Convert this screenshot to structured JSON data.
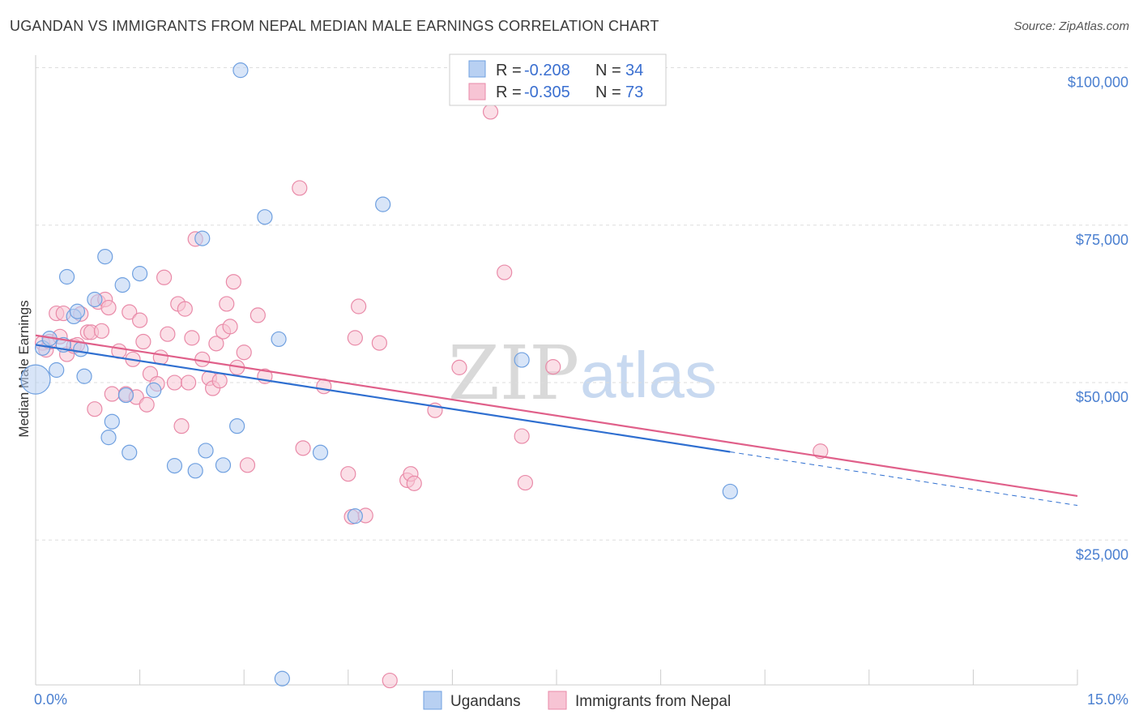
{
  "title": "UGANDAN VS IMMIGRANTS FROM NEPAL MEDIAN MALE EARNINGS CORRELATION CHART",
  "source": "Source: ZipAtlas.com",
  "watermark": {
    "zip": "ZIP",
    "atlas": "atlas"
  },
  "colors": {
    "ugandans": "#6fa0e0",
    "ugandans_fill": "#b8d0f2",
    "nepal": "#e98aa8",
    "nepal_fill": "#f7c4d4",
    "ugandans_line": "#2f6fd0",
    "nepal_line": "#e0608a",
    "axis_label": "#4a7fd0",
    "grid": "#dddddd"
  },
  "legend_stats": [
    {
      "r_label": "R = ",
      "r_value": "-0.208",
      "n_label": "N = ",
      "n_value": "34"
    },
    {
      "r_label": "R = ",
      "r_value": "-0.305",
      "n_label": "N = ",
      "n_value": "73"
    }
  ],
  "chart_data": {
    "type": "scatter",
    "title": "UGANDAN VS IMMIGRANTS FROM NEPAL MEDIAN MALE EARNINGS CORRELATION CHART",
    "xlabel": "",
    "ylabel": "Median Male Earnings",
    "xlim": [
      0,
      15
    ],
    "ylim": [
      2000,
      102000
    ],
    "x_tick_labels": [
      "0.0%",
      "15.0%"
    ],
    "y_ticks": [
      25000,
      50000,
      75000,
      100000
    ],
    "y_tick_labels": [
      "$25,000",
      "$50,000",
      "$75,000",
      "$100,000"
    ],
    "legend": [
      "Ugandans",
      "Immigrants from Nepal"
    ],
    "series": [
      {
        "name": "Ugandans",
        "r": -0.208,
        "n": 34,
        "trend": {
          "x0": 0.0,
          "y0": 56000,
          "x1": 10.0,
          "y1": 39000,
          "dash_to_x": 15.0,
          "dash_to_y": 30500
        },
        "points": [
          [
            0.0,
            50500
          ],
          [
            0.1,
            55500
          ],
          [
            0.2,
            57000
          ],
          [
            0.3,
            52000
          ],
          [
            0.4,
            56000
          ],
          [
            0.45,
            66800
          ],
          [
            0.55,
            60500
          ],
          [
            0.6,
            61300
          ],
          [
            0.65,
            55300
          ],
          [
            0.7,
            51000
          ],
          [
            0.85,
            63200
          ],
          [
            1.0,
            70000
          ],
          [
            1.05,
            41300
          ],
          [
            1.1,
            43800
          ],
          [
            1.25,
            65500
          ],
          [
            1.3,
            48000
          ],
          [
            1.35,
            38900
          ],
          [
            1.5,
            67300
          ],
          [
            1.7,
            48800
          ],
          [
            2.0,
            36800
          ],
          [
            2.3,
            36000
          ],
          [
            2.4,
            72900
          ],
          [
            2.45,
            39200
          ],
          [
            2.7,
            36900
          ],
          [
            2.9,
            43100
          ],
          [
            2.95,
            99600
          ],
          [
            3.3,
            76300
          ],
          [
            3.5,
            56900
          ],
          [
            3.55,
            3000
          ],
          [
            4.1,
            38900
          ],
          [
            4.6,
            28800
          ],
          [
            5.0,
            78300
          ],
          [
            7.0,
            53600
          ],
          [
            10.0,
            32700
          ]
        ]
      },
      {
        "name": "Immigrants from Nepal",
        "r": -0.305,
        "n": 73,
        "trend": {
          "x0": 0.0,
          "y0": 57500,
          "x1": 15.0,
          "y1": 32000
        },
        "points": [
          [
            0.1,
            56300
          ],
          [
            0.15,
            55200
          ],
          [
            0.2,
            56500
          ],
          [
            0.3,
            61000
          ],
          [
            0.35,
            57300
          ],
          [
            0.4,
            61000
          ],
          [
            0.45,
            54500
          ],
          [
            0.55,
            55800
          ],
          [
            0.6,
            56000
          ],
          [
            0.65,
            60900
          ],
          [
            0.75,
            58000
          ],
          [
            0.8,
            58000
          ],
          [
            0.85,
            45800
          ],
          [
            0.9,
            62800
          ],
          [
            0.95,
            58200
          ],
          [
            1.0,
            63200
          ],
          [
            1.05,
            61900
          ],
          [
            1.1,
            48200
          ],
          [
            1.2,
            55000
          ],
          [
            1.3,
            48200
          ],
          [
            1.35,
            61200
          ],
          [
            1.4,
            53700
          ],
          [
            1.45,
            47700
          ],
          [
            1.5,
            59900
          ],
          [
            1.55,
            56500
          ],
          [
            1.6,
            46500
          ],
          [
            1.65,
            51400
          ],
          [
            1.75,
            49800
          ],
          [
            1.8,
            54000
          ],
          [
            1.85,
            66700
          ],
          [
            1.9,
            57700
          ],
          [
            2.0,
            50000
          ],
          [
            2.05,
            62500
          ],
          [
            2.1,
            43100
          ],
          [
            2.15,
            61700
          ],
          [
            2.2,
            50000
          ],
          [
            2.25,
            57100
          ],
          [
            2.3,
            72800
          ],
          [
            2.4,
            53700
          ],
          [
            2.5,
            50700
          ],
          [
            2.55,
            49100
          ],
          [
            2.6,
            56200
          ],
          [
            2.65,
            50300
          ],
          [
            2.7,
            58100
          ],
          [
            2.75,
            62500
          ],
          [
            2.8,
            58900
          ],
          [
            2.85,
            66000
          ],
          [
            2.9,
            52400
          ],
          [
            3.0,
            54800
          ],
          [
            3.05,
            36900
          ],
          [
            3.2,
            60700
          ],
          [
            3.3,
            51000
          ],
          [
            3.8,
            80900
          ],
          [
            3.85,
            39600
          ],
          [
            4.15,
            49400
          ],
          [
            4.5,
            35500
          ],
          [
            4.55,
            28700
          ],
          [
            4.6,
            57100
          ],
          [
            4.65,
            62100
          ],
          [
            4.75,
            28900
          ],
          [
            4.95,
            56300
          ],
          [
            5.1,
            2700
          ],
          [
            5.35,
            34500
          ],
          [
            5.4,
            35500
          ],
          [
            5.45,
            34000
          ],
          [
            5.75,
            45600
          ],
          [
            6.1,
            52400
          ],
          [
            6.55,
            93000
          ],
          [
            6.75,
            67500
          ],
          [
            7.0,
            41500
          ],
          [
            7.05,
            34100
          ],
          [
            7.45,
            52500
          ],
          [
            11.3,
            39100
          ]
        ]
      }
    ]
  }
}
